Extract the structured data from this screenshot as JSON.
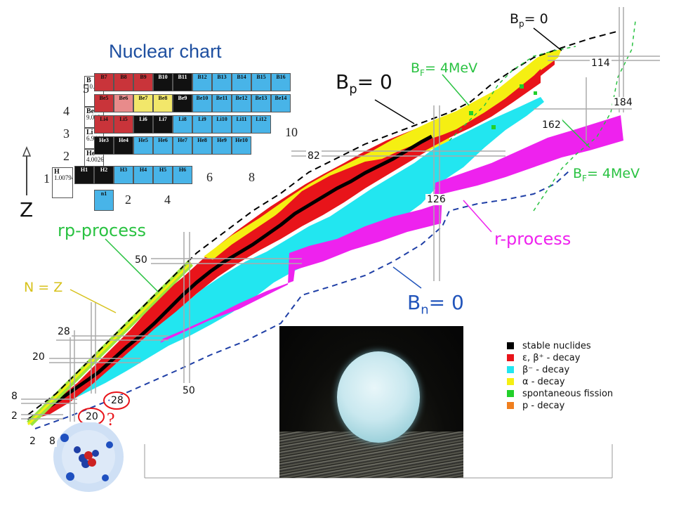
{
  "title": "Nuclear chart",
  "labels": {
    "bp_top": "B",
    "bp_top_sub": "p",
    "bp_top_val": "= 0",
    "bp_mid": "B",
    "bp_mid_sub": "p",
    "bp_mid_val": "= 0",
    "bf_top": "B",
    "bf_top_sub": "F",
    "bf_top_val": "= 4MeV",
    "bf_right": "B",
    "bf_right_sub": "F",
    "bf_right_val": "= 4MeV",
    "bn": "B",
    "bn_sub": "n",
    "bn_val": "= 0",
    "rp_process": "rp-process",
    "r_process": "r-process",
    "n_eq_z": "N = Z",
    "z_axis": "Z",
    "question": "?"
  },
  "magic_numbers": {
    "n114": "114",
    "n184": "184",
    "n162": "162",
    "n82": "82",
    "n126": "126",
    "n50z": "50",
    "n28z": "28",
    "n20z": "20",
    "n8z": "8",
    "n2z": "2",
    "n50n": "50",
    "n28n": "28",
    "n20n": "20",
    "n2n": "2",
    "n8n": "8"
  },
  "legend": [
    {
      "label": "stable nuclides",
      "color": "#000000"
    },
    {
      "label": "ε, β⁺ - decay",
      "color": "#e8141a"
    },
    {
      "label": "β⁻ - decay",
      "color": "#22e6f0"
    },
    {
      "label": "α - decay",
      "color": "#f5ef12"
    },
    {
      "label": "spontaneous fission",
      "color": "#22d02a"
    },
    {
      "label": "p - decay",
      "color": "#f07f1e"
    }
  ],
  "colors": {
    "stable": "#000000",
    "beta_plus": "#e8141a",
    "beta_minus": "#22e6f0",
    "alpha": "#f5ef12",
    "fission": "#22d02a",
    "r_process": "#ee22ee",
    "title": "#1e4fa0",
    "label_green": "#29c241",
    "label_blue": "#2255bb"
  },
  "inset_table": {
    "z_labels": [
      "5",
      "4",
      "3",
      "2",
      "1"
    ],
    "n_labels": [
      "2",
      "4",
      "6",
      "8",
      "10"
    ],
    "elements": [
      {
        "sym": "B",
        "z": "5",
        "mass": "10.811"
      },
      {
        "sym": "Be",
        "z": "4",
        "mass": "9.012182"
      },
      {
        "sym": "Li",
        "z": "3",
        "mass": "6.941"
      },
      {
        "sym": "He",
        "z": "2",
        "mass": "4.002602"
      },
      {
        "sym": "H",
        "z": "1",
        "mass": "1.00794"
      }
    ],
    "rows": [
      [
        "B7",
        "B8",
        "B9",
        "B10",
        "B11",
        "B12",
        "B13",
        "B14",
        "B15",
        "B16"
      ],
      [
        "Be5",
        "",
        "Be6",
        "Be7",
        "Be8",
        "Be9",
        "Be10",
        "Be11",
        "Be12",
        "Be13",
        "Be14"
      ],
      [
        "Li4",
        "Li5",
        "Li6",
        "Li7",
        "Li8",
        "Li9",
        "Li10",
        "Li11",
        "Li12"
      ],
      [
        "He3",
        "He4",
        "He5",
        "He6",
        "He7",
        "He8",
        "He9",
        "He10"
      ],
      [
        "H1",
        "H2",
        "H3",
        "H4",
        "H5",
        "H6"
      ]
    ],
    "neutron": "n1"
  }
}
